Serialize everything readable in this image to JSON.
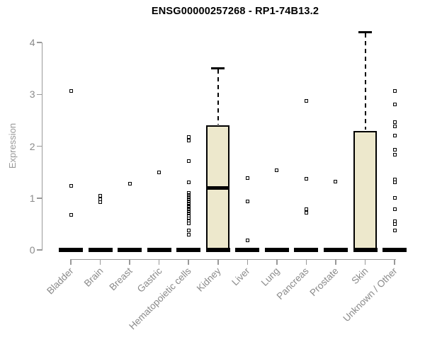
{
  "chart_data": {
    "type": "boxplot",
    "title": "ENSG00000257268 - RP1-74B13.2",
    "ylabel": "Expression",
    "xlabel": "",
    "ylim": [
      0,
      4
    ],
    "yticks": [
      0,
      1,
      2,
      3,
      4
    ],
    "grid": false,
    "legend": "none",
    "colors": {
      "box_fill": "#EDE8CC",
      "box_stroke": "#000000",
      "axis": "#999999",
      "tick_label": "#8a8a8a",
      "title": "#000000",
      "point": "#000000"
    },
    "categories": [
      "Bladder",
      "Brain",
      "Breast",
      "Gastric",
      "Hematopoietic cells",
      "Kidney",
      "Liver",
      "Lung",
      "Pancreas",
      "Prostate",
      "Skin",
      "Unknown / Other"
    ],
    "groups": [
      {
        "label": "Bladder",
        "box": {
          "q1": 0,
          "median": 0,
          "q3": 0,
          "whisker_low": 0,
          "whisker_high": 0
        },
        "points": [
          3.06,
          1.23,
          0.67
        ]
      },
      {
        "label": "Brain",
        "box": {
          "q1": 0,
          "median": 0,
          "q3": 0,
          "whisker_low": 0,
          "whisker_high": 0
        },
        "points": [
          1.04,
          0.98,
          0.92
        ]
      },
      {
        "label": "Breast",
        "box": {
          "q1": 0,
          "median": 0,
          "q3": 0,
          "whisker_low": 0,
          "whisker_high": 0
        },
        "points": [
          1.28
        ]
      },
      {
        "label": "Gastric",
        "box": {
          "q1": 0,
          "median": 0,
          "q3": 0,
          "whisker_low": 0,
          "whisker_high": 0
        },
        "points": [
          1.49
        ]
      },
      {
        "label": "Hematopoietic cells",
        "box": {
          "q1": 0,
          "median": 0,
          "q3": 0,
          "whisker_low": 0,
          "whisker_high": 0
        },
        "points": [
          2.18,
          2.11,
          1.72,
          1.31,
          1.1,
          1.06,
          1.02,
          0.98,
          0.94,
          0.9,
          0.86,
          0.82,
          0.78,
          0.74,
          0.7,
          0.66,
          0.61,
          0.56,
          0.51,
          0.38,
          0.29
        ]
      },
      {
        "label": "Kidney",
        "box": {
          "q1": 0,
          "median": 1.2,
          "q3": 2.4,
          "whisker_low": 0,
          "whisker_high": 3.5
        },
        "points": []
      },
      {
        "label": "Liver",
        "box": {
          "q1": 0,
          "median": 0,
          "q3": 0,
          "whisker_low": 0,
          "whisker_high": 0
        },
        "points": [
          1.38,
          0.93,
          0.18
        ]
      },
      {
        "label": "Lung",
        "box": {
          "q1": 0,
          "median": 0,
          "q3": 0,
          "whisker_low": 0,
          "whisker_high": 0
        },
        "points": [
          1.54
        ]
      },
      {
        "label": "Pancreas",
        "box": {
          "q1": 0,
          "median": 0,
          "q3": 0,
          "whisker_low": 0,
          "whisker_high": 0
        },
        "points": [
          2.88,
          1.37,
          0.78,
          0.71
        ]
      },
      {
        "label": "Prostate",
        "box": {
          "q1": 0,
          "median": 0,
          "q3": 0,
          "whisker_low": 0,
          "whisker_high": 0
        },
        "points": [
          1.32
        ]
      },
      {
        "label": "Skin",
        "box": {
          "q1": 0,
          "median": 0,
          "q3": 2.3,
          "whisker_low": 0,
          "whisker_high": 4.2
        },
        "points": []
      },
      {
        "label": "Unknown / Other",
        "box": {
          "q1": 0,
          "median": 0,
          "q3": 0,
          "whisker_low": 0,
          "whisker_high": 0
        },
        "points": [
          3.06,
          2.8,
          2.46,
          2.38,
          2.21,
          1.93,
          1.84,
          1.36,
          1.31,
          1.0,
          0.79,
          0.55,
          0.5,
          0.38
        ]
      }
    ]
  }
}
